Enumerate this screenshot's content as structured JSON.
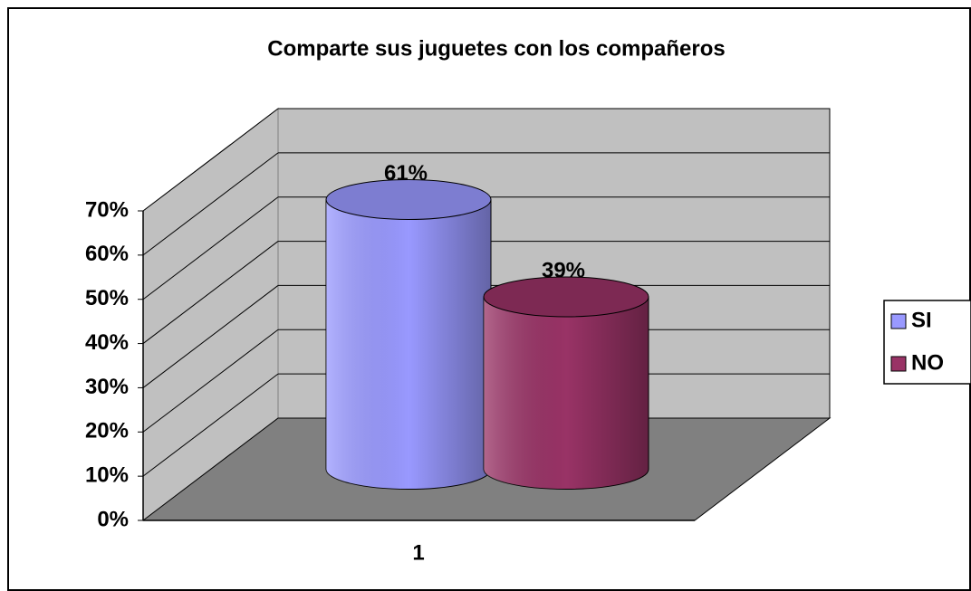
{
  "chart_data": {
    "type": "cylinder-bar",
    "title": "Comparte sus juguetes con los compañeros",
    "categories": [
      "1"
    ],
    "series": [
      {
        "name": "SI",
        "color": "#9999ff",
        "values": [
          61
        ],
        "value_labels": [
          "61%"
        ]
      },
      {
        "name": "NO",
        "color": "#993366",
        "values": [
          39
        ],
        "value_labels": [
          "39%"
        ]
      }
    ],
    "ylim": [
      0,
      70
    ],
    "yticks": [
      {
        "value": 0,
        "label": "0%"
      },
      {
        "value": 10,
        "label": "10%"
      },
      {
        "value": 20,
        "label": "20%"
      },
      {
        "value": 30,
        "label": "30%"
      },
      {
        "value": 40,
        "label": "40%"
      },
      {
        "value": 50,
        "label": "50%"
      },
      {
        "value": 60,
        "label": "60%"
      },
      {
        "value": 70,
        "label": "70%"
      }
    ],
    "grid": true,
    "legend": "right"
  }
}
